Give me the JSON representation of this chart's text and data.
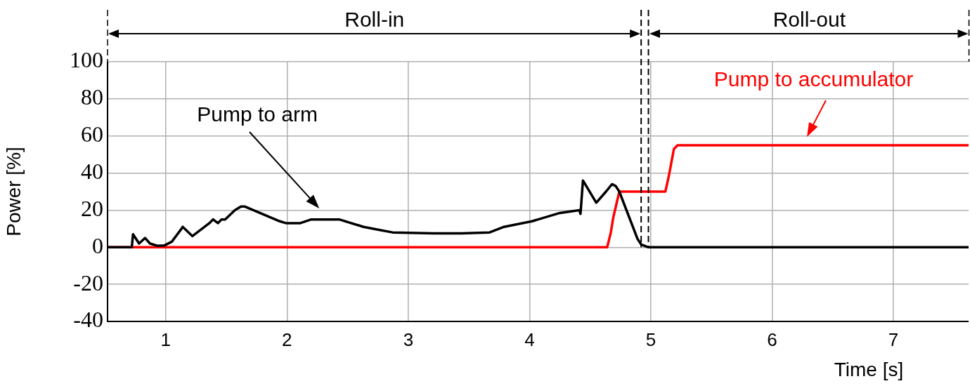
{
  "chart_data": {
    "type": "line",
    "xlabel": "Time [s]",
    "ylabel": "Power [%]",
    "xlim": [
      0.52,
      7.62
    ],
    "xticks": [
      1,
      2,
      3,
      4,
      5,
      6,
      7
    ],
    "ylim": [
      -40,
      100
    ],
    "yticks": [
      -40,
      -20,
      0,
      20,
      40,
      60,
      80,
      100
    ],
    "grid": true,
    "legend": false,
    "marker": "none",
    "line_style": "solid",
    "series": [
      {
        "color": "#000000",
        "x": [
          0.52,
          0.72,
          0.73,
          0.78,
          0.83,
          0.87,
          0.93,
          0.99,
          1.05,
          1.13,
          1.14,
          1.22,
          1.36,
          1.39,
          1.43,
          1.46,
          1.49,
          1.57,
          1.62,
          1.65,
          1.94,
          1.99,
          2.11,
          2.2,
          2.43,
          2.63,
          2.75,
          2.87,
          3.21,
          3.44,
          3.67,
          3.79,
          4.02,
          4.25,
          4.41,
          4.42,
          4.44,
          4.55,
          4.63,
          4.68,
          4.71,
          4.74,
          4.89,
          4.92,
          4.98,
          7.62
        ],
        "values": [
          0,
          0,
          7,
          2,
          5,
          2,
          0.8,
          1,
          3,
          10,
          11,
          6,
          13,
          15,
          13,
          15,
          15,
          20,
          22,
          22,
          14,
          13,
          13,
          15,
          15,
          11,
          9.5,
          8,
          7.5,
          7.5,
          8,
          11,
          14,
          18.5,
          20,
          18,
          36,
          24,
          30,
          34,
          33,
          30,
          4.5,
          1.5,
          0,
          0
        ]
      },
      {
        "color": "#ff0000",
        "x": [
          0.52,
          4.64,
          4.67,
          4.69,
          4.74,
          5.12,
          5.14,
          5.15,
          5.19,
          5.22,
          7.62
        ],
        "values": [
          0,
          0,
          8,
          16,
          30,
          30,
          36,
          39,
          53,
          55,
          55
        ]
      }
    ],
    "annotations": [
      "Pump to arm",
      "Pump to accumulator",
      "Roll-in",
      "Roll-out"
    ],
    "ref_lines": [
      {
        "axis": "x",
        "value": 4.92,
        "line_style": "dashed"
      },
      {
        "axis": "x",
        "value": 4.98,
        "line_style": "dashed"
      }
    ]
  }
}
